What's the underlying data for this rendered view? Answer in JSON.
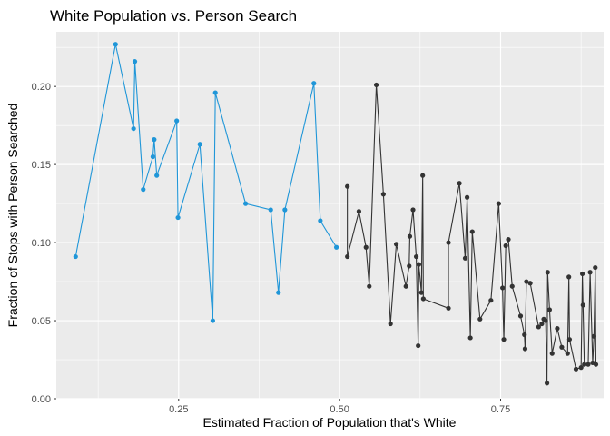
{
  "chart_data": {
    "type": "line",
    "title": "White Population vs. Person Search",
    "xlabel": "Estimated Fraction of Population that's White",
    "ylabel": "Fraction of Stops with Person Searched",
    "xlim": [
      0.06,
      0.91
    ],
    "ylim": [
      0.0,
      0.235
    ],
    "x_ticks": [
      {
        "value": 0.25,
        "label": "0.25"
      },
      {
        "value": 0.5,
        "label": "0.50"
      },
      {
        "value": 0.75,
        "label": "0.75"
      }
    ],
    "y_ticks": [
      {
        "value": 0.0,
        "label": "0.00"
      },
      {
        "value": 0.05,
        "label": "0.05"
      },
      {
        "value": 0.1,
        "label": "0.10"
      },
      {
        "value": 0.15,
        "label": "0.15"
      },
      {
        "value": 0.2,
        "label": "0.20"
      }
    ],
    "grid": true,
    "legend": "none",
    "colors": {
      "panel": "#ebebeb",
      "grid": "#ffffff",
      "series_blue": "#1f96d8",
      "series_black": "#333333"
    },
    "series": [
      {
        "color": "#1f96d8",
        "points": [
          [
            0.09,
            0.091
          ],
          [
            0.152,
            0.227
          ],
          [
            0.18,
            0.173
          ],
          [
            0.182,
            0.216
          ],
          [
            0.195,
            0.134
          ],
          [
            0.21,
            0.155
          ],
          [
            0.212,
            0.166
          ],
          [
            0.216,
            0.143
          ],
          [
            0.247,
            0.178
          ],
          [
            0.249,
            0.116
          ],
          [
            0.283,
            0.163
          ],
          [
            0.303,
            0.05
          ],
          [
            0.307,
            0.196
          ],
          [
            0.354,
            0.125
          ],
          [
            0.393,
            0.121
          ],
          [
            0.405,
            0.068
          ],
          [
            0.415,
            0.121
          ],
          [
            0.46,
            0.202
          ],
          [
            0.47,
            0.114
          ],
          [
            0.495,
            0.097
          ]
        ]
      },
      {
        "color": "#333333",
        "points": [
          [
            0.512,
            0.136
          ],
          [
            0.512,
            0.091
          ],
          [
            0.53,
            0.12
          ],
          [
            0.541,
            0.097
          ],
          [
            0.546,
            0.072
          ],
          [
            0.557,
            0.201
          ],
          [
            0.568,
            0.131
          ],
          [
            0.579,
            0.048
          ],
          [
            0.588,
            0.099
          ],
          [
            0.603,
            0.072
          ],
          [
            0.608,
            0.085
          ],
          [
            0.609,
            0.104
          ],
          [
            0.614,
            0.121
          ],
          [
            0.619,
            0.091
          ],
          [
            0.622,
            0.034
          ],
          [
            0.623,
            0.086
          ],
          [
            0.627,
            0.068
          ],
          [
            0.629,
            0.143
          ],
          [
            0.63,
            0.064
          ],
          [
            0.669,
            0.058
          ],
          [
            0.669,
            0.1
          ],
          [
            0.686,
            0.138
          ],
          [
            0.695,
            0.09
          ],
          [
            0.698,
            0.129
          ],
          [
            0.703,
            0.039
          ],
          [
            0.706,
            0.107
          ],
          [
            0.718,
            0.051
          ],
          [
            0.735,
            0.063
          ],
          [
            0.747,
            0.125
          ],
          [
            0.753,
            0.071
          ],
          [
            0.755,
            0.038
          ],
          [
            0.758,
            0.098
          ],
          [
            0.762,
            0.102
          ],
          [
            0.768,
            0.072
          ],
          [
            0.781,
            0.053
          ],
          [
            0.787,
            0.041
          ],
          [
            0.788,
            0.032
          ],
          [
            0.79,
            0.075
          ],
          [
            0.796,
            0.074
          ],
          [
            0.809,
            0.046
          ],
          [
            0.814,
            0.048
          ],
          [
            0.817,
            0.051
          ],
          [
            0.82,
            0.05
          ],
          [
            0.822,
            0.01
          ],
          [
            0.823,
            0.081
          ],
          [
            0.826,
            0.057
          ],
          [
            0.83,
            0.029
          ],
          [
            0.838,
            0.045
          ],
          [
            0.845,
            0.033
          ],
          [
            0.854,
            0.029
          ],
          [
            0.856,
            0.078
          ],
          [
            0.857,
            0.038
          ],
          [
            0.867,
            0.019
          ],
          [
            0.875,
            0.02
          ],
          [
            0.877,
            0.08
          ],
          [
            0.878,
            0.06
          ],
          [
            0.88,
            0.022
          ],
          [
            0.886,
            0.022
          ],
          [
            0.889,
            0.081
          ],
          [
            0.893,
            0.023
          ],
          [
            0.895,
            0.04
          ],
          [
            0.897,
            0.084
          ],
          [
            0.898,
            0.022
          ]
        ]
      }
    ]
  }
}
